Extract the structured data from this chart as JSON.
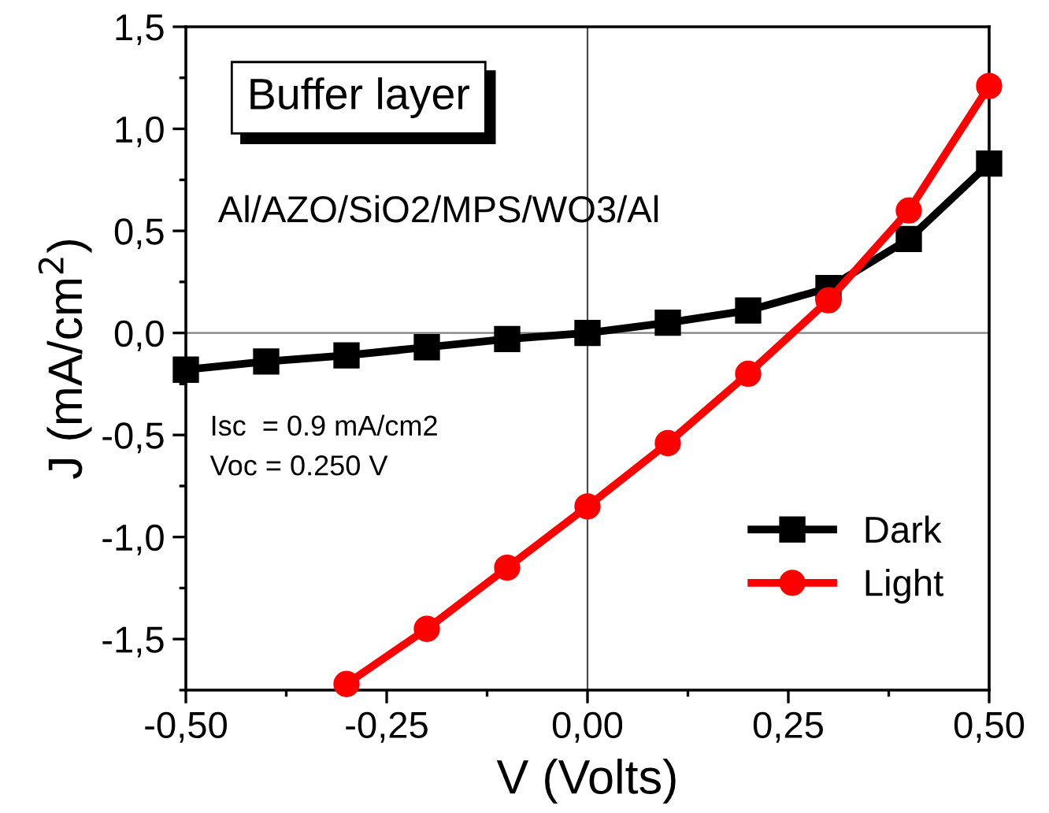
{
  "chart_data": {
    "type": "line",
    "xlabel": "V (Volts)",
    "ylabel": "J (mA/cm$^{2}$)",
    "x": [
      -0.5,
      -0.4,
      -0.3,
      -0.2,
      -0.1,
      0.0,
      0.1,
      0.2,
      0.3,
      0.4,
      0.5
    ],
    "series": [
      {
        "name": "Dark",
        "color": "#000000",
        "marker": "square",
        "values": [
          -0.18,
          -0.14,
          -0.11,
          -0.07,
          -0.03,
          0.0,
          0.05,
          0.11,
          0.22,
          0.46,
          0.83
        ]
      },
      {
        "name": "Light",
        "color": "#ff0000",
        "marker": "circle",
        "values": [
          null,
          null,
          -1.72,
          -1.45,
          -1.15,
          -0.85,
          -0.54,
          -0.2,
          0.16,
          0.6,
          1.21
        ]
      }
    ],
    "xlim": [
      -0.5,
      0.5
    ],
    "ylim": [
      -1.75,
      1.5
    ],
    "xticks": [
      {
        "value": -0.5,
        "label": "-0,50"
      },
      {
        "value": -0.25,
        "label": "-0,25"
      },
      {
        "value": 0,
        "label": "0,00"
      },
      {
        "value": 0.25,
        "label": "0,25"
      },
      {
        "value": 0.5,
        "label": "0,50"
      }
    ],
    "yticks": [
      {
        "value": -1.5,
        "label": "-1,5"
      },
      {
        "value": -1.0,
        "label": "-1,0"
      },
      {
        "value": -0.5,
        "label": "-0,5"
      },
      {
        "value": 0,
        "label": "0,0"
      },
      {
        "value": 0.5,
        "label": "0,5"
      },
      {
        "value": 1.0,
        "label": "1,0"
      },
      {
        "value": 1.5,
        "label": "1,5"
      }
    ],
    "ref_lines": [
      {
        "axis": "x",
        "value": 0,
        "color": "#4d4d4d"
      },
      {
        "axis": "y",
        "value": 0,
        "color": "#808080"
      }
    ],
    "annotations": [
      "Buffer layer",
      "Al/AZO/SiO2/MPS/WO3/Al",
      "Isc  = 0.9 mA/cm2",
      "Voc = 0.250 V"
    ],
    "legend": "bottom right",
    "grid": false,
    "line_style": "solid"
  }
}
